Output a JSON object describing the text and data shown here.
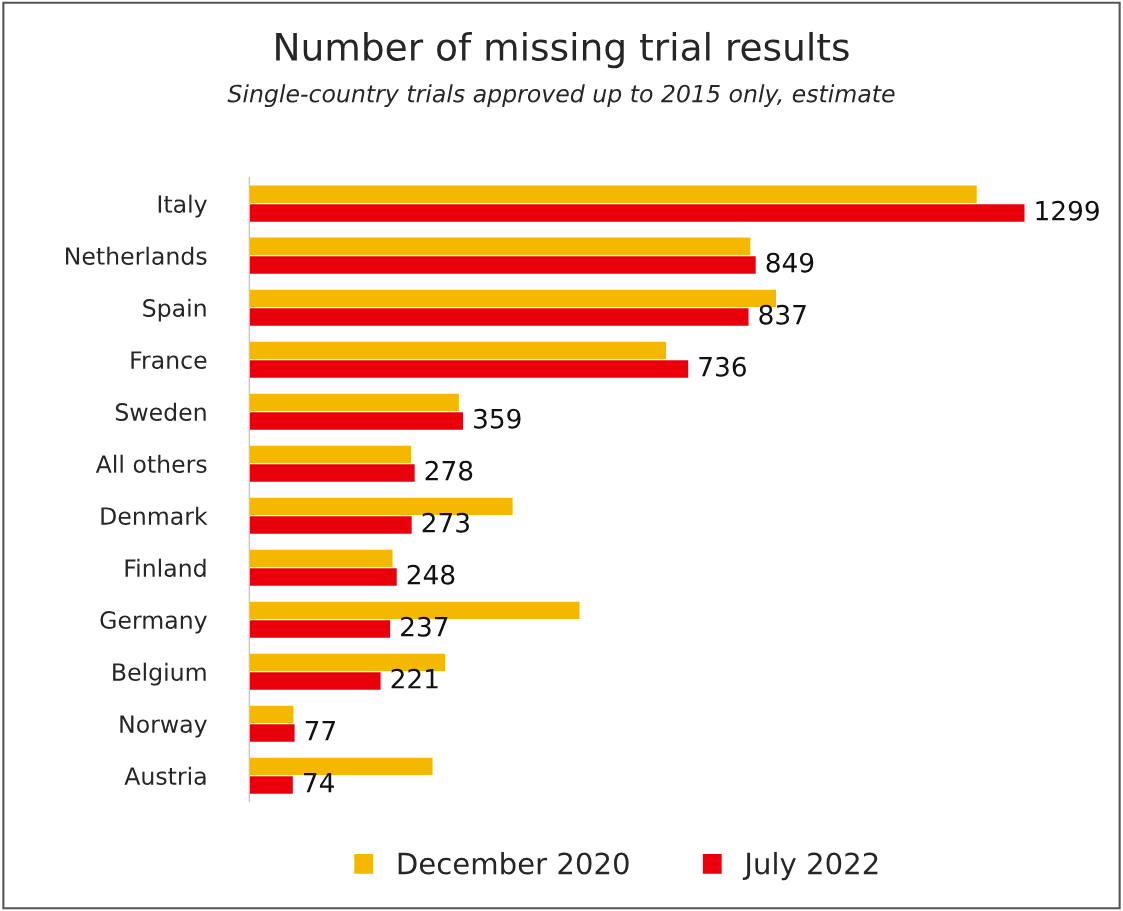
{
  "chart_data": {
    "type": "bar",
    "orientation": "horizontal",
    "title": "Number of missing trial results",
    "subtitle": "Single-country trials approved up to 2015 only, estimate",
    "categories": [
      "Italy",
      "Netherlands",
      "Spain",
      "France",
      "Sweden",
      "All others",
      "Denmark",
      "Finland",
      "Germany",
      "Belgium",
      "Norway",
      "Austria"
    ],
    "series": [
      {
        "name": "December 2020",
        "color": "#f5b800",
        "values": [
          1219,
          840,
          883,
          699,
          352,
          272,
          442,
          241,
          554,
          329,
          75,
          308
        ]
      },
      {
        "name": "July 2022",
        "color": "#e8000b",
        "values": [
          1299,
          849,
          837,
          736,
          359,
          278,
          273,
          248,
          237,
          221,
          77,
          74
        ],
        "value_labels": [
          "1299",
          "849",
          "837",
          "736",
          "359",
          "278",
          "273",
          "248",
          "237",
          "221",
          "77",
          "74"
        ]
      }
    ],
    "legend": "bottom",
    "grid": false
  }
}
